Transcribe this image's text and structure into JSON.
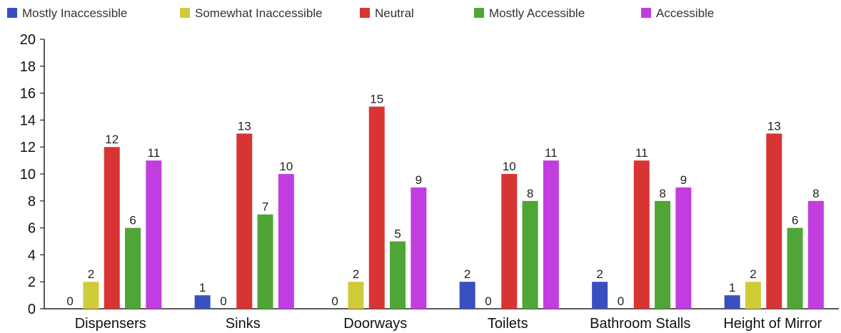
{
  "chart_data": {
    "type": "bar",
    "categories": [
      "Dispensers",
      "Sinks",
      "Doorways",
      "Toilets",
      "Bathroom Stalls",
      "Height of Mirror"
    ],
    "series": [
      {
        "name": "Mostly Inaccessible",
        "color": "#3a4fbf",
        "values": [
          0,
          1,
          0,
          2,
          2,
          1
        ]
      },
      {
        "name": "Somewhat Inaccessible",
        "color": "#cfcc3a",
        "values": [
          2,
          0,
          2,
          0,
          0,
          2
        ]
      },
      {
        "name": "Neutral",
        "color": "#d93434",
        "values": [
          12,
          13,
          15,
          10,
          11,
          13
        ]
      },
      {
        "name": "Mostly Accessible",
        "color": "#4fa535",
        "values": [
          6,
          7,
          5,
          8,
          8,
          6
        ]
      },
      {
        "name": "Accessible",
        "color": "#c23de0",
        "values": [
          11,
          10,
          9,
          11,
          9,
          8
        ]
      }
    ],
    "ylim": [
      0,
      20
    ],
    "yticks": [
      "0",
      "2",
      "4",
      "6",
      "8",
      "10",
      "12",
      "14",
      "16",
      "18",
      "20"
    ],
    "legend_position": "top",
    "grid": false
  }
}
